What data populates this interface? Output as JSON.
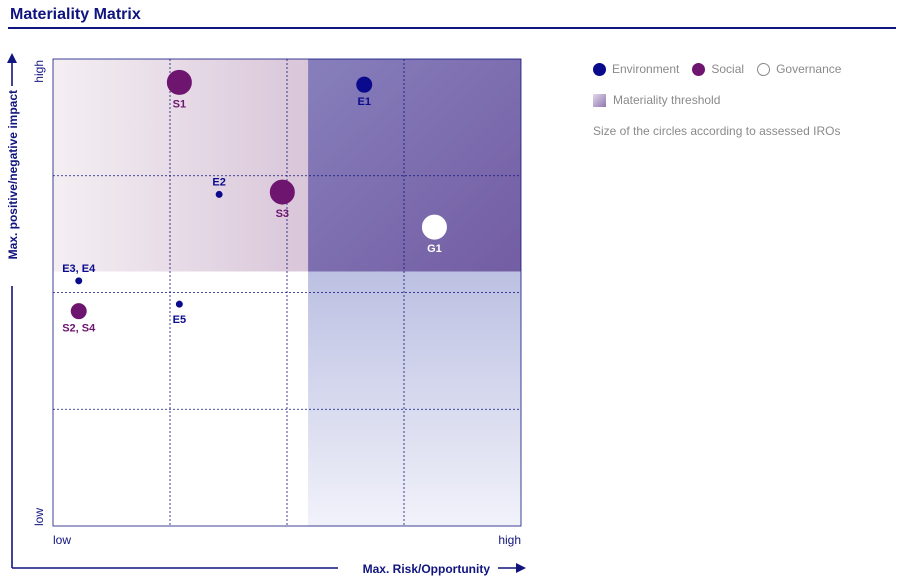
{
  "header": {
    "title": "Materiality Matrix"
  },
  "colors": {
    "environment": "#0a0a8c",
    "social": "#6e1570",
    "governance": "#ffffff",
    "axis": "#10147e"
  },
  "legend": {
    "items": [
      {
        "key": "environment",
        "label": "Environment",
        "color": "#0a0a8c",
        "border": "#0a0a8c"
      },
      {
        "key": "social",
        "label": "Social",
        "color": "#6e1570",
        "border": "#6e1570"
      },
      {
        "key": "governance",
        "label": "Governance",
        "color": "#ffffff",
        "border": "#8a8a8a"
      }
    ],
    "threshold_label": "Materiality threshold",
    "note": "Size of the circles according to assessed IROs"
  },
  "chart_data": {
    "type": "scatter",
    "title": "Materiality Matrix",
    "xlabel": "Max. Risk/Opportunity",
    "ylabel": "Max. positive/negative impact",
    "x_tick_labels": {
      "low": "low",
      "high": "high"
    },
    "y_tick_labels": {
      "low": "low",
      "high": "high"
    },
    "xlim": [
      0,
      1
    ],
    "ylim": [
      0,
      1
    ],
    "grid": true,
    "materiality_threshold": {
      "x": 0.545,
      "y": 0.545
    },
    "points": [
      {
        "label": "S1",
        "category": "social",
        "x": 0.27,
        "y": 0.95,
        "size": 3
      },
      {
        "label": "E1",
        "category": "environment",
        "x": 0.665,
        "y": 0.945,
        "size": 2
      },
      {
        "label": "E2",
        "category": "environment",
        "x": 0.355,
        "y": 0.71,
        "size": 1
      },
      {
        "label": "S3",
        "category": "social",
        "x": 0.49,
        "y": 0.715,
        "size": 3
      },
      {
        "label": "G1",
        "category": "governance",
        "x": 0.815,
        "y": 0.64,
        "size": 3
      },
      {
        "label": "E3, E4",
        "category": "environment",
        "x": 0.055,
        "y": 0.525,
        "size": 1
      },
      {
        "label": "S2, S4",
        "category": "social",
        "x": 0.055,
        "y": 0.46,
        "size": 2
      },
      {
        "label": "E5",
        "category": "environment",
        "x": 0.27,
        "y": 0.475,
        "size": 1
      }
    ]
  }
}
